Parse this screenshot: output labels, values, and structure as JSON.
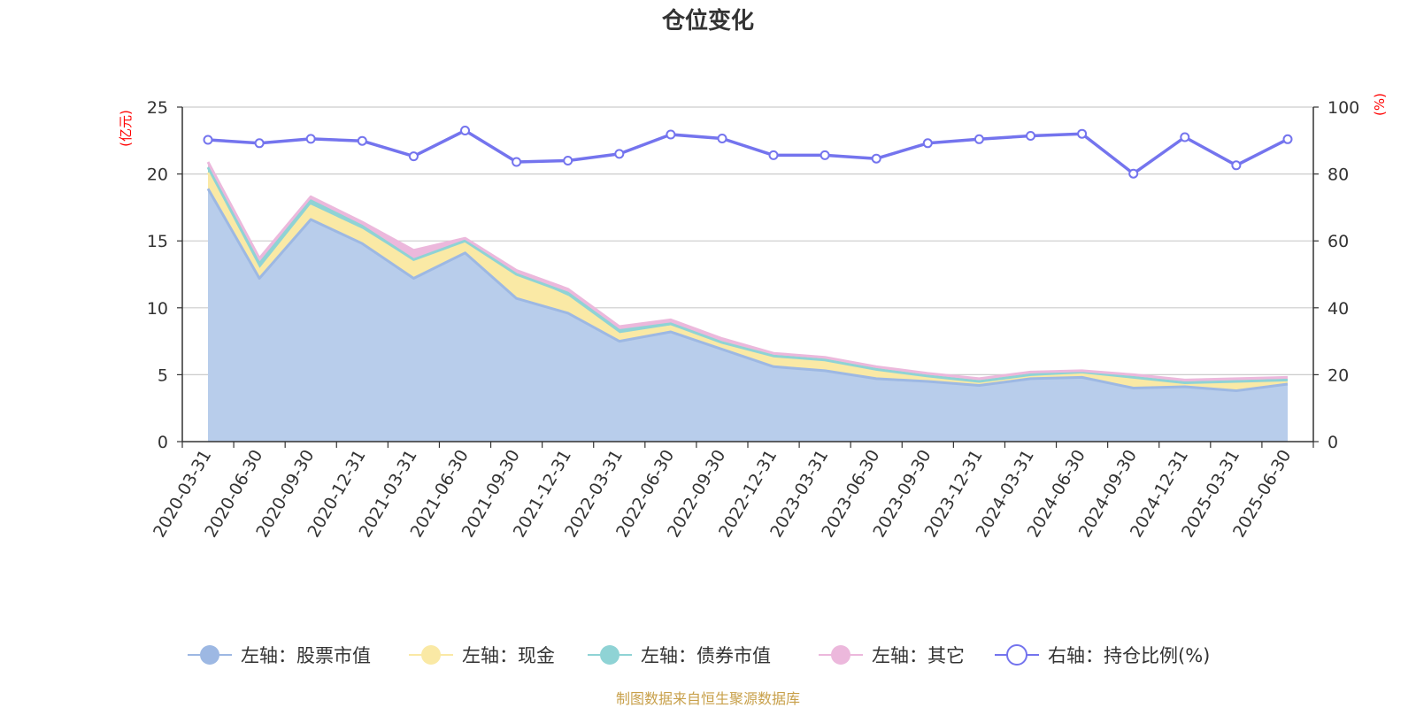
{
  "title": "仓位变化",
  "left_unit": "(亿元)",
  "right_unit": "(%)",
  "source": "制图数据来自恒生聚源数据库",
  "colors": {
    "stock": "#9db8e3",
    "stock_fill": "#b8cdeb",
    "cash": "#fae9a5",
    "bond": "#8fd3d5",
    "other": "#ecb8dc",
    "ratio": "#7474ee",
    "axis": "#333333",
    "grid": "#cccccc"
  },
  "legend": [
    {
      "label": "左轴：股票市值",
      "color": "#9db8e3",
      "hollow": false
    },
    {
      "label": "左轴：现金",
      "color": "#fae9a5",
      "hollow": false
    },
    {
      "label": "左轴：债券市值",
      "color": "#8fd3d5",
      "hollow": false
    },
    {
      "label": "左轴：其它",
      "color": "#ecb8dc",
      "hollow": false
    },
    {
      "label": "右轴：持仓比例(%)",
      "color": "#7474ee",
      "hollow": true
    }
  ],
  "chart_data": {
    "type": "area",
    "title": "仓位变化",
    "categories": [
      "2020-03-31",
      "2020-06-30",
      "2020-09-30",
      "2020-12-31",
      "2021-03-31",
      "2021-06-30",
      "2021-09-30",
      "2021-12-31",
      "2022-03-31",
      "2022-06-30",
      "2022-09-30",
      "2022-12-31",
      "2023-03-31",
      "2023-06-30",
      "2023-09-30",
      "2023-12-31",
      "2024-03-31",
      "2024-06-30",
      "2024-09-30",
      "2024-12-31",
      "2025-03-31",
      "2025-06-30"
    ],
    "left_axis": {
      "label": "(亿元)",
      "ylim": [
        0,
        25
      ],
      "ticks": [
        0,
        5,
        10,
        15,
        20,
        25
      ]
    },
    "right_axis": {
      "label": "(%)",
      "ylim": [
        0,
        100
      ],
      "ticks": [
        0,
        20,
        40,
        60,
        80,
        100
      ]
    },
    "grid": true,
    "legend_position": "bottom",
    "stacked_series": [
      {
        "name": "左轴：股票市值",
        "axis": "left",
        "values": [
          18.9,
          12.2,
          16.6,
          14.8,
          12.2,
          14.1,
          10.7,
          9.6,
          7.5,
          8.2,
          6.9,
          5.6,
          5.3,
          4.7,
          4.5,
          4.2,
          4.7,
          4.8,
          4.0,
          4.1,
          3.8,
          4.3
        ]
      },
      {
        "name": "左轴：现金",
        "axis": "left",
        "values": [
          1.2,
          0.6,
          1.0,
          1.0,
          1.2,
          0.8,
          1.8,
          1.2,
          0.5,
          0.4,
          0.5,
          0.8,
          0.8,
          0.7,
          0.4,
          0.3,
          0.3,
          0.4,
          0.8,
          0.3,
          0.7,
          0.3
        ]
      },
      {
        "name": "左轴：债券市值",
        "axis": "left",
        "values": [
          0.4,
          0.5,
          0.4,
          0.3,
          0.2,
          0.1,
          0.0,
          0.3,
          0.3,
          0.2,
          0.0,
          0.0,
          0.0,
          0.0,
          0.0,
          0.0,
          0.0,
          0.0,
          0.0,
          0.0,
          0.0,
          0.0
        ]
      },
      {
        "name": "左轴：其它",
        "axis": "left",
        "values": [
          0.4,
          0.4,
          0.3,
          0.3,
          0.7,
          0.2,
          0.3,
          0.3,
          0.3,
          0.3,
          0.3,
          0.2,
          0.2,
          0.2,
          0.2,
          0.2,
          0.2,
          0.1,
          0.2,
          0.2,
          0.2,
          0.2
        ]
      }
    ],
    "line_series": {
      "name": "右轴：持仓比例(%)",
      "axis": "right",
      "values": [
        90.2,
        89.2,
        90.5,
        89.9,
        85.3,
        93.0,
        83.6,
        84.0,
        86.0,
        91.8,
        90.6,
        85.6,
        85.6,
        84.6,
        89.2,
        90.4,
        91.4,
        92.0,
        80.1,
        91.0,
        82.6,
        90.4
      ]
    }
  }
}
